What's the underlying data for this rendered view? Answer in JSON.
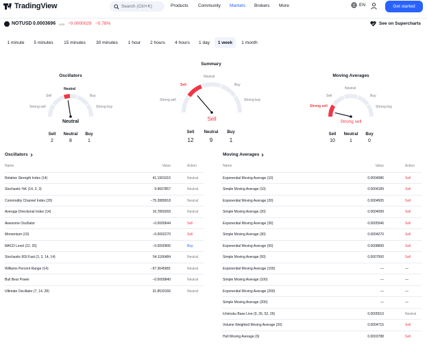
{
  "header": {
    "brand": "TradingView",
    "search_placeholder": "Search (Ctrl+K)",
    "nav": [
      "Products",
      "Community",
      "Markets",
      "Brokers",
      "More"
    ],
    "active_nav": "Markets",
    "language": "EN",
    "cta_label": "Get started",
    "accent_color": "#2962ff"
  },
  "symbol": {
    "ticker": "NOTUSD",
    "price": "0.0003696",
    "currency": "USD",
    "change": "−0.0000029",
    "change_percent": "−0.78%",
    "supercharts_label": "See on Supercharts",
    "down_color": "#f23645"
  },
  "intervals": {
    "items": [
      "1 minute",
      "5 minutes",
      "15 minutes",
      "30 minutes",
      "1 hour",
      "2 hours",
      "4 hours",
      "1 day",
      "1 week",
      "1 month"
    ],
    "active": "1 week"
  },
  "gauges": {
    "oscillators": {
      "title": "Oscillators",
      "labels": {
        "strong_sell": "Strong sell",
        "sell": "Sell",
        "neutral": "Neutral",
        "buy": "Buy",
        "strong_buy": "Strong buy"
      },
      "result": "Neutral",
      "counts": {
        "sell_label": "Sell",
        "neutral_label": "Neutral",
        "buy_label": "Buy",
        "sell": "2",
        "neutral": "8",
        "buy": "1"
      },
      "needle_level": -0.1
    },
    "summary": {
      "title": "Summary",
      "labels": {
        "strong_sell": "Strong sell",
        "sell": "Sell",
        "neutral": "Neutral",
        "buy": "Buy",
        "strong_buy": "Strong buy"
      },
      "result": "Sell",
      "counts": {
        "sell_label": "Sell",
        "neutral_label": "Neutral",
        "buy_label": "Buy",
        "sell": "12",
        "neutral": "9",
        "buy": "1"
      },
      "needle_level": -0.45
    },
    "moving_averages": {
      "title": "Moving Averages",
      "labels": {
        "strong_sell": "Strong sell",
        "sell": "Sell",
        "neutral": "Neutral",
        "buy": "Buy",
        "strong_buy": "Strong buy"
      },
      "result": "Strong sell",
      "counts": {
        "sell_label": "Sell",
        "neutral_label": "Neutral",
        "buy_label": "Buy",
        "sell": "10",
        "neutral": "1",
        "buy": "0"
      },
      "needle_level": -0.85
    }
  },
  "oscillators_table": {
    "title": "Oscillators",
    "columns": [
      "Name",
      "Value",
      "Action"
    ],
    "rows": [
      {
        "name": "Relative Strength Index (14)",
        "value": "41.1901015",
        "action": "Neutral"
      },
      {
        "name": "Stochastic %K (14, 3, 3)",
        "value": "9.9607857",
        "action": "Neutral"
      },
      {
        "name": "Commodity Channel Index (20)",
        "value": "−75.2889918",
        "action": "Neutral"
      },
      {
        "name": "Average Directional Index (14)",
        "value": "16.7869269",
        "action": "Neutral"
      },
      {
        "name": "Awesome Oscillator",
        "value": "−0.0000644",
        "action": "Sell"
      },
      {
        "name": "Momentum (10)",
        "value": "−0.0002270",
        "action": "Sell"
      },
      {
        "name": "MACD Level (12, 26)",
        "value": "−0.0000906",
        "action": "Buy"
      },
      {
        "name": "Stochastic RSI Fast (3, 3, 14, 14)",
        "value": "54.1166484",
        "action": "Neutral"
      },
      {
        "name": "Williams Percent Range (14)",
        "value": "−97.3645681",
        "action": "Neutral"
      },
      {
        "name": "Bull Bear Power",
        "value": "−0.0000840",
        "action": "Neutral"
      },
      {
        "name": "Ultimate Oscillator (7, 14, 28)",
        "value": "31.8533166",
        "action": "Neutral"
      }
    ]
  },
  "ma_table": {
    "title": "Moving Averages",
    "columns": [
      "Name",
      "Value",
      "Action"
    ],
    "rows": [
      {
        "name": "Exponential Moving Average (10)",
        "value": "0.0004086",
        "action": "Sell"
      },
      {
        "name": "Simple Moving Average (10)",
        "value": "0.0004189",
        "action": "Sell"
      },
      {
        "name": "Exponential Moving Average (20)",
        "value": "0.0004505",
        "action": "Sell"
      },
      {
        "name": "Simple Moving Average (20)",
        "value": "0.0004099",
        "action": "Sell"
      },
      {
        "name": "Exponential Moving Average (30)",
        "value": "0.0005546",
        "action": "Sell"
      },
      {
        "name": "Simple Moving Average (30)",
        "value": "0.0004270",
        "action": "Sell"
      },
      {
        "name": "Exponential Moving Average (50)",
        "value": "0.0008899",
        "action": "Sell"
      },
      {
        "name": "Simple Moving Average (50)",
        "value": "0.0007500",
        "action": "Sell"
      },
      {
        "name": "Exponential Moving Average (100)",
        "value": "—",
        "action": "—"
      },
      {
        "name": "Simple Moving Average (100)",
        "value": "—",
        "action": "—"
      },
      {
        "name": "Exponential Moving Average (200)",
        "value": "—",
        "action": "—"
      },
      {
        "name": "Simple Moving Average (200)",
        "value": "—",
        "action": "—"
      },
      {
        "name": "Ichimoku Base Line (9, 26, 52, 26)",
        "value": "0.0005510",
        "action": "Neutral"
      },
      {
        "name": "Volume Weighted Moving Average (20)",
        "value": "0.0004715",
        "action": "Sell"
      },
      {
        "name": "Hull Moving Average (9)",
        "value": "0.0003788",
        "action": "Sell"
      }
    ]
  }
}
